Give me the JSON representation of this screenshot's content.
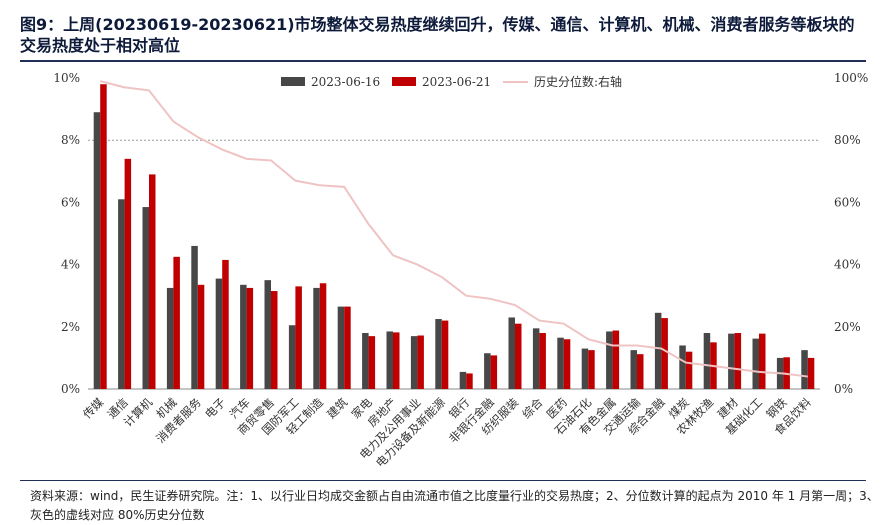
{
  "title": "图9：上周(20230619-20230621)市场整体交易热度继续回升，传媒、通信、计算机、机械、消费者服务等板块的交易热度处于相对高位",
  "footnote": "资料来源：wind，民生证券研究院。注：1、以行业日均成交金额占自由流通市值之比度量行业的交易热度；2、分位数计算的起点为 2010 年 1 月第一周；3、灰色的虚线对应 80%历史分位数",
  "colors": {
    "series1": "#474747",
    "series2": "#c00000",
    "line": "#efc3c3",
    "refline": "#999999"
  },
  "chart_data": {
    "type": "bar",
    "categories": [
      "传媒",
      "通信",
      "计算机",
      "机械",
      "消费者服务",
      "电子",
      "汽车",
      "商贸零售",
      "国防军工",
      "轻工制造",
      "建筑",
      "家电",
      "房地产",
      "电力及公用事业",
      "电力设备及新能源",
      "银行",
      "非银行金融",
      "纺织服装",
      "综合",
      "医药",
      "石油石化",
      "有色金属",
      "交通运输",
      "综合金融",
      "煤炭",
      "农林牧渔",
      "建材",
      "基础化工",
      "钢铁",
      "食品饮料"
    ],
    "series": [
      {
        "name": "2023-06-16",
        "axis": "left",
        "values": [
          8.9,
          6.1,
          5.85,
          3.25,
          4.6,
          3.55,
          3.35,
          3.5,
          2.05,
          3.25,
          2.65,
          1.8,
          1.85,
          1.7,
          2.25,
          0.55,
          1.15,
          2.3,
          1.95,
          1.65,
          1.3,
          1.85,
          1.25,
          2.45,
          1.4,
          1.8,
          1.78,
          1.62,
          1.0,
          1.25
        ]
      },
      {
        "name": "2023-06-21",
        "axis": "left",
        "values": [
          9.8,
          7.4,
          6.9,
          4.25,
          3.35,
          4.15,
          3.25,
          3.15,
          3.3,
          3.4,
          2.65,
          1.7,
          1.82,
          1.72,
          2.2,
          0.5,
          1.08,
          2.1,
          1.8,
          1.6,
          1.25,
          1.88,
          1.12,
          2.28,
          1.2,
          1.5,
          1.8,
          1.78,
          1.02,
          1.0
        ]
      },
      {
        "name": "历史分位数:右轴",
        "axis": "right",
        "type": "line",
        "values": [
          99,
          97,
          96,
          86,
          81,
          77,
          74,
          73.5,
          67,
          65.5,
          65,
          53,
          43,
          40,
          36,
          30,
          29,
          27,
          22,
          21,
          16,
          14,
          14,
          13,
          8.5,
          7.5,
          6.5,
          5.5,
          5,
          4
        ]
      }
    ],
    "y_left": {
      "lim": [
        0,
        10
      ],
      "ticks": [
        "0%",
        "2%",
        "4%",
        "6%",
        "8%",
        "10%"
      ]
    },
    "y_right": {
      "lim": [
        0,
        100
      ],
      "ticks": [
        "0%",
        "20%",
        "40%",
        "60%",
        "80%",
        "100%"
      ]
    },
    "reference_line": {
      "axis": "left",
      "value": 8,
      "style": "dashed"
    },
    "legend_position": "top"
  }
}
